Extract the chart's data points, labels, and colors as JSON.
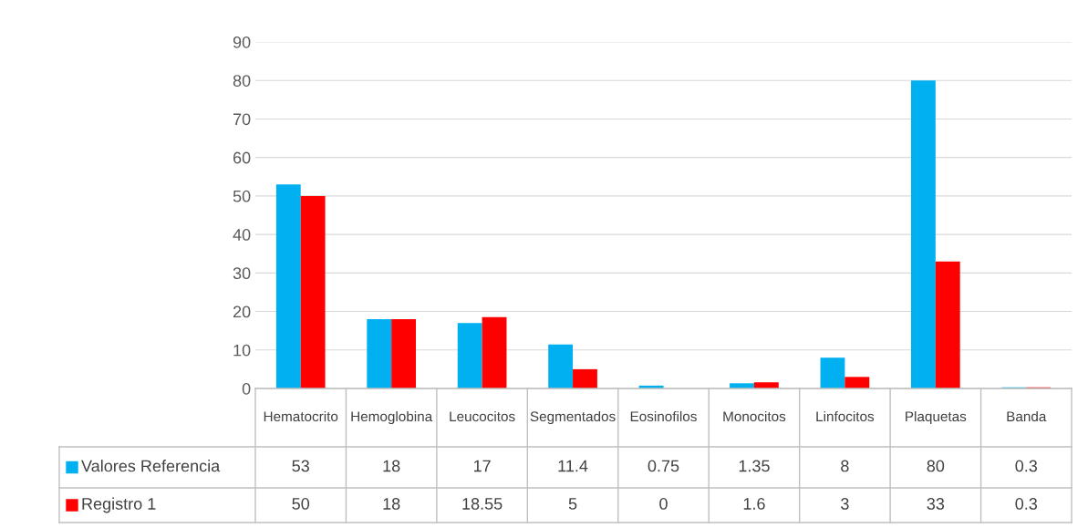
{
  "chart_data": {
    "type": "bar",
    "categories": [
      "Hematocrito",
      "Hemoglobina",
      "Leucocitos",
      "Segmentados",
      "Eosinofilos",
      "Monocitos",
      "Linfocitos",
      "Plaquetas",
      "Banda"
    ],
    "series": [
      {
        "name": "Valores Referencia",
        "color": "#00b0f0",
        "values": [
          53,
          18,
          17,
          11.4,
          0.75,
          1.35,
          8,
          80,
          0.3
        ]
      },
      {
        "name": "Registro 1",
        "color": "#ff0000",
        "values": [
          50,
          18,
          18.55,
          5,
          0,
          1.6,
          3,
          33,
          0.3
        ]
      }
    ],
    "ylim": [
      0,
      90
    ],
    "yticks": [
      0,
      10,
      20,
      30,
      40,
      50,
      60,
      70,
      80,
      90
    ],
    "grid": "y",
    "data_labels": true,
    "legend": "bottom left"
  }
}
